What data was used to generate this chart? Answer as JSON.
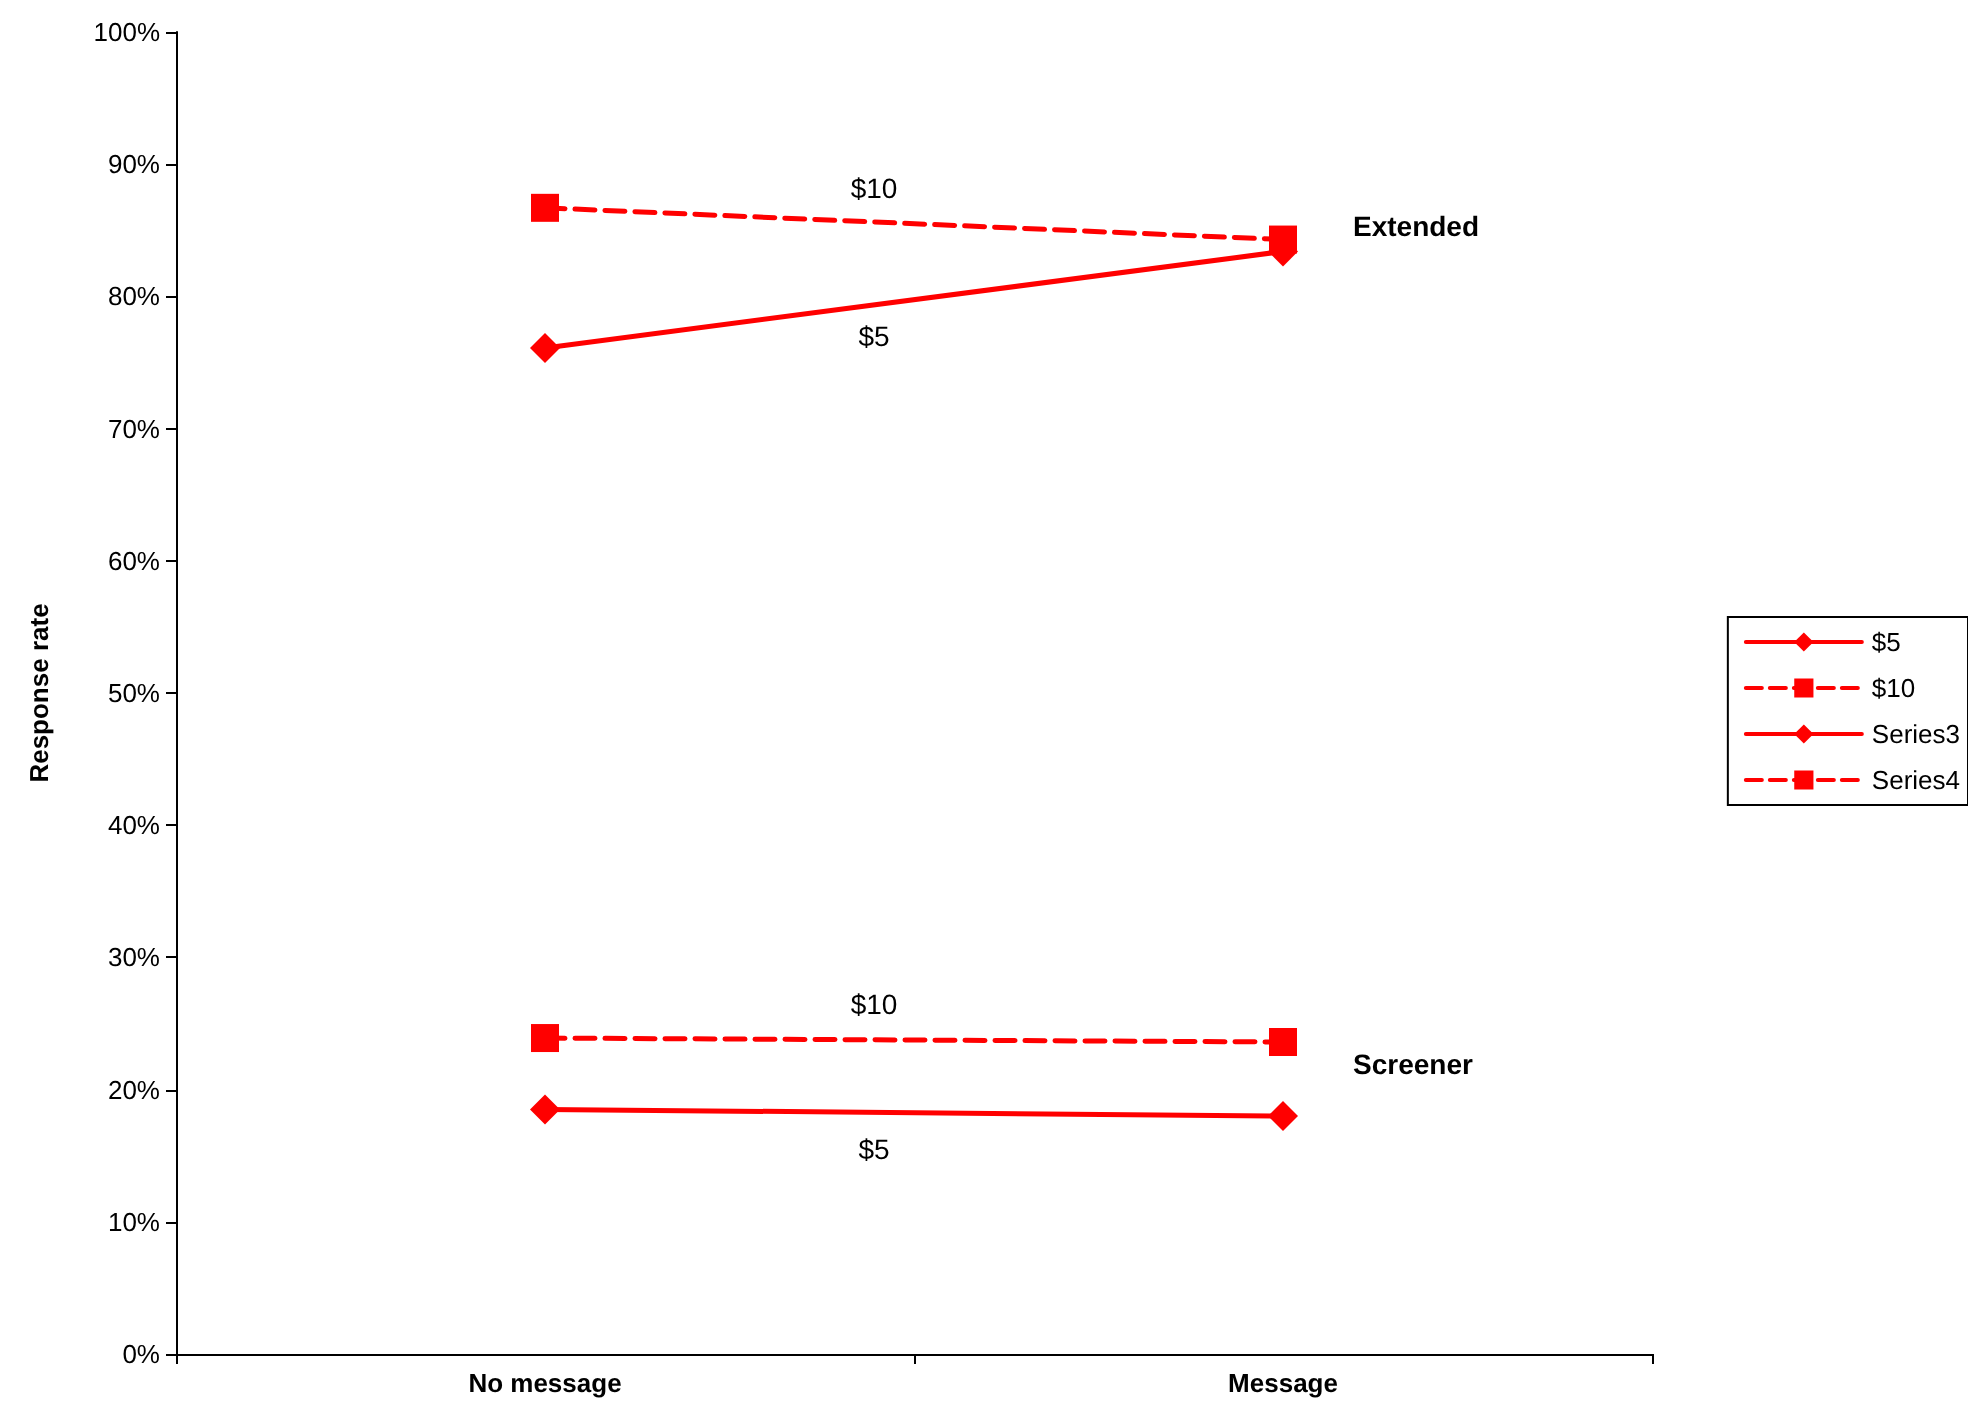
{
  "chart_data": {
    "type": "line",
    "ylabel": "Response rate",
    "categories": [
      "No message",
      "Message"
    ],
    "ylim": [
      0,
      100
    ],
    "yticks": [
      {
        "value": 0,
        "label": "0%"
      },
      {
        "value": 10,
        "label": "10%"
      },
      {
        "value": 20,
        "label": "20%"
      },
      {
        "value": 30,
        "label": "30%"
      },
      {
        "value": 40,
        "label": "40%"
      },
      {
        "value": 50,
        "label": "50%"
      },
      {
        "value": 60,
        "label": "60%"
      },
      {
        "value": 70,
        "label": "70%"
      },
      {
        "value": 80,
        "label": "80%"
      },
      {
        "value": 90,
        "label": "90%"
      },
      {
        "value": 100,
        "label": "100%"
      }
    ],
    "series": [
      {
        "name": "$5",
        "color": "#ff0000",
        "values": [
          76.1,
          83.4
        ],
        "marker": "diamond",
        "line_style": "solid"
      },
      {
        "name": "$10",
        "color": "#ff0000",
        "values": [
          86.7,
          84.3
        ],
        "marker": "square",
        "line_style": "dashed"
      },
      {
        "name": "Series3",
        "color": "#ff0000",
        "values": [
          18.5,
          18.0
        ],
        "marker": "diamond",
        "line_style": "solid"
      },
      {
        "name": "Series4",
        "color": "#ff0000",
        "values": [
          23.9,
          23.6
        ],
        "marker": "square",
        "line_style": "dashed"
      }
    ],
    "annotations": [
      "$5",
      "$10",
      "$5",
      "$10",
      {
        "text": "Extended",
        "x": "Message",
        "y": 85.3
      },
      {
        "text": "Screener",
        "x": "Message",
        "y": 21.9
      }
    ],
    "grid": false,
    "legend": "right"
  }
}
